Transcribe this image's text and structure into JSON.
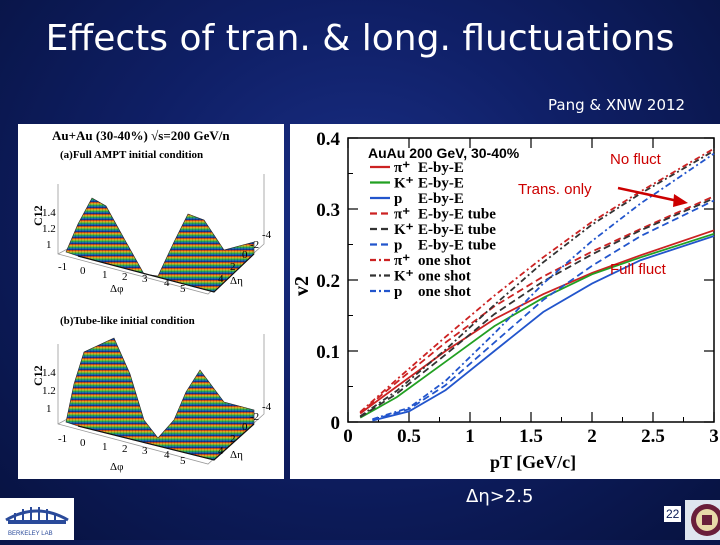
{
  "slide": {
    "title": "Effects of tran. & long. fluctuations",
    "credit": "Pang & XNW  2012",
    "note": "Δη>2.5",
    "page_number": "22",
    "logo_text": "BERKELEY LAB"
  },
  "left_panel": {
    "header": "Au+Au (30-40%) √s=200 GeV/n",
    "panel_a_label": "(a)Full AMPT initial condition",
    "panel_b_label": "(b)Tube-like initial condition",
    "zlabel": "C12",
    "z_ticks": [
      "1.4",
      "1.2",
      "1"
    ],
    "phi_ticks": [
      "-1",
      "0",
      "1",
      "2",
      "3",
      "4",
      "5"
    ],
    "eta_ticks": [
      "4",
      "2",
      "0",
      "-2",
      "-4"
    ],
    "phi_label": "Δφ",
    "eta_label": "Δη"
  },
  "chart_data": {
    "type": "line",
    "title": "",
    "xlabel": "pT [GeV/c]",
    "ylabel": "v2",
    "xlim": [
      0,
      3
    ],
    "ylim": [
      0,
      0.4
    ],
    "x_ticks": [
      "0",
      "0.5",
      "1",
      "1.5",
      "2",
      "2.5",
      "3"
    ],
    "y_ticks": [
      "0",
      "0.1",
      "0.2",
      "0.3",
      "0.4"
    ],
    "legend_title": "AuAu 200 GeV, 30-40%",
    "annotations": [
      "No fluct",
      "Trans. only",
      "Full fluct"
    ],
    "series": [
      {
        "name": "π⁺ E-by-E",
        "particle": "π⁺",
        "tag": "E-by-E",
        "color": "#cc2222",
        "dash": "solid",
        "points": [
          [
            0.1,
            0.012
          ],
          [
            0.4,
            0.05
          ],
          [
            0.8,
            0.1
          ],
          [
            1.2,
            0.145
          ],
          [
            1.6,
            0.18
          ],
          [
            2.0,
            0.21
          ],
          [
            2.4,
            0.235
          ],
          [
            3.0,
            0.27
          ]
        ]
      },
      {
        "name": "K⁺ E-by-E",
        "particle": "K⁺",
        "tag": "E-by-E",
        "color": "#22a022",
        "dash": "solid",
        "points": [
          [
            0.1,
            0.006
          ],
          [
            0.4,
            0.035
          ],
          [
            0.8,
            0.085
          ],
          [
            1.2,
            0.135
          ],
          [
            1.6,
            0.175
          ],
          [
            2.0,
            0.208
          ],
          [
            2.4,
            0.232
          ],
          [
            3.0,
            0.265
          ]
        ]
      },
      {
        "name": "p E-by-E",
        "particle": "p",
        "tag": "E-by-E",
        "color": "#2255cc",
        "dash": "solid",
        "points": [
          [
            0.2,
            0.002
          ],
          [
            0.5,
            0.015
          ],
          [
            0.8,
            0.045
          ],
          [
            1.2,
            0.1
          ],
          [
            1.6,
            0.155
          ],
          [
            2.0,
            0.195
          ],
          [
            2.4,
            0.228
          ],
          [
            3.0,
            0.262
          ]
        ]
      },
      {
        "name": "π⁺ E-by-E tube",
        "particle": "π⁺",
        "tag": "E-by-E tube",
        "color": "#cc2222",
        "dash": "dashed",
        "points": [
          [
            0.1,
            0.013
          ],
          [
            0.4,
            0.056
          ],
          [
            0.8,
            0.112
          ],
          [
            1.2,
            0.163
          ],
          [
            1.6,
            0.205
          ],
          [
            2.0,
            0.24
          ],
          [
            2.4,
            0.272
          ],
          [
            3.0,
            0.318
          ]
        ]
      },
      {
        "name": "K⁺ E-by-E tube",
        "particle": "K⁺",
        "tag": "E-by-E tube",
        "color": "#333333",
        "dash": "dashed",
        "points": [
          [
            0.1,
            0.007
          ],
          [
            0.4,
            0.04
          ],
          [
            0.8,
            0.095
          ],
          [
            1.2,
            0.152
          ],
          [
            1.6,
            0.198
          ],
          [
            2.0,
            0.236
          ],
          [
            2.4,
            0.27
          ],
          [
            3.0,
            0.315
          ]
        ]
      },
      {
        "name": "p E-by-E tube",
        "particle": "p",
        "tag": "E-by-E tube",
        "color": "#2255cc",
        "dash": "dashed",
        "points": [
          [
            0.2,
            0.003
          ],
          [
            0.5,
            0.018
          ],
          [
            0.8,
            0.052
          ],
          [
            1.2,
            0.112
          ],
          [
            1.6,
            0.172
          ],
          [
            2.0,
            0.22
          ],
          [
            2.4,
            0.262
          ],
          [
            3.0,
            0.312
          ]
        ]
      },
      {
        "name": "π⁺ one shot",
        "particle": "π⁺",
        "tag": "one shot",
        "color": "#cc2222",
        "dash": "dashdot",
        "points": [
          [
            0.1,
            0.014
          ],
          [
            0.4,
            0.06
          ],
          [
            0.8,
            0.12
          ],
          [
            1.2,
            0.178
          ],
          [
            1.6,
            0.232
          ],
          [
            2.0,
            0.282
          ],
          [
            2.4,
            0.325
          ],
          [
            3.0,
            0.385
          ]
        ]
      },
      {
        "name": "K⁺ one shot",
        "particle": "K⁺",
        "tag": "one shot",
        "color": "#333333",
        "dash": "dashdot",
        "points": [
          [
            0.1,
            0.008
          ],
          [
            0.4,
            0.044
          ],
          [
            0.8,
            0.102
          ],
          [
            1.2,
            0.165
          ],
          [
            1.6,
            0.225
          ],
          [
            2.0,
            0.278
          ],
          [
            2.4,
            0.322
          ],
          [
            3.0,
            0.382
          ]
        ]
      },
      {
        "name": "p one shot",
        "particle": "p",
        "tag": "one shot",
        "color": "#2255cc",
        "dash": "dashdot",
        "points": [
          [
            0.2,
            0.004
          ],
          [
            0.5,
            0.02
          ],
          [
            0.8,
            0.058
          ],
          [
            1.2,
            0.125
          ],
          [
            1.6,
            0.195
          ],
          [
            2.0,
            0.255
          ],
          [
            2.4,
            0.308
          ],
          [
            3.0,
            0.378
          ]
        ]
      }
    ]
  },
  "colors": {
    "background": "#0f1f66",
    "annotation_red": "#cc0000",
    "arrow_red": "#cc0000"
  }
}
